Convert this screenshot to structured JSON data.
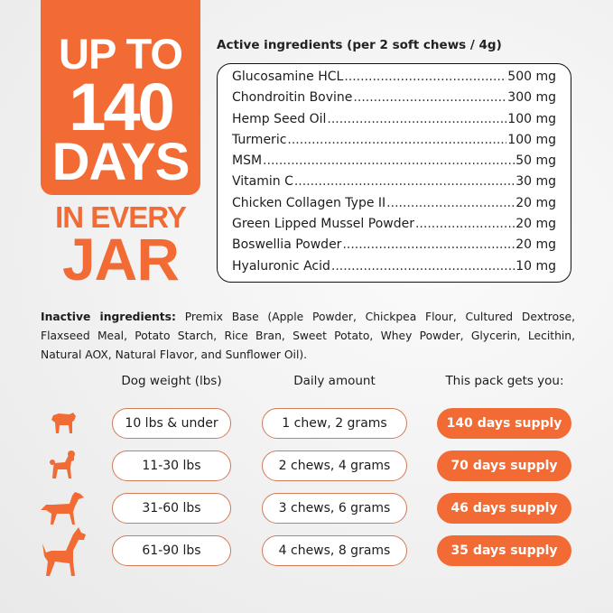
{
  "colors": {
    "accent": "#f26b35",
    "text": "#1c1c1c"
  },
  "badge": {
    "line1": "UP TO",
    "line2": "140",
    "line3": "DAYS",
    "line4": "IN EVERY",
    "line5": "JAR"
  },
  "active": {
    "heading": "Active ingredients (per 2 soft chews / 4g)",
    "items": [
      {
        "name": "Glucosamine HCL",
        "amount": "500 mg"
      },
      {
        "name": "Chondroitin Bovine",
        "amount": "300 mg"
      },
      {
        "name": "Hemp Seed Oil",
        "amount": "100 mg"
      },
      {
        "name": "Turmeric",
        "amount": "100 mg"
      },
      {
        "name": "MSM",
        "amount": "50 mg"
      },
      {
        "name": "Vitamin C",
        "amount": "30 mg"
      },
      {
        "name": "Chicken Collagen Type II",
        "amount": "20 mg"
      },
      {
        "name": "Green Lipped Mussel Powder",
        "amount": "20 mg"
      },
      {
        "name": "Boswellia Powder",
        "amount": "20 mg"
      },
      {
        "name": "Hyaluronic Acid",
        "amount": "10 mg"
      }
    ]
  },
  "inactive": {
    "label": "Inactive ingredients:",
    "text": " Premix Base (Apple Powder, Chickpea Flour, Cultured Dextrose, Flaxseed Meal, Potato Starch, Rice Bran, Sweet Potato, Whey Powder, Glycerin, Lecithin, Natural AOX, Natural Flavor, and Sunflower Oil)."
  },
  "table": {
    "headers": [
      "Dog weight (lbs)",
      "Daily amount",
      "This pack gets you:"
    ],
    "rows": [
      {
        "icon": "pug-icon",
        "weight": "10 lbs & under",
        "amount": "1 chew, 2 grams",
        "days": "140",
        "supply": "days supply"
      },
      {
        "icon": "poodle-icon",
        "weight": "11-30 lbs",
        "amount": "2 chews, 4 grams",
        "days": "70",
        "supply": "days supply"
      },
      {
        "icon": "setter-icon",
        "weight": "31-60 lbs",
        "amount": "3 chews, 6 grams",
        "days": "46",
        "supply": "days supply"
      },
      {
        "icon": "boxer-icon",
        "weight": "61-90 lbs",
        "amount": "4 chews, 8 grams",
        "days": "35",
        "supply": "days supply"
      }
    ]
  }
}
